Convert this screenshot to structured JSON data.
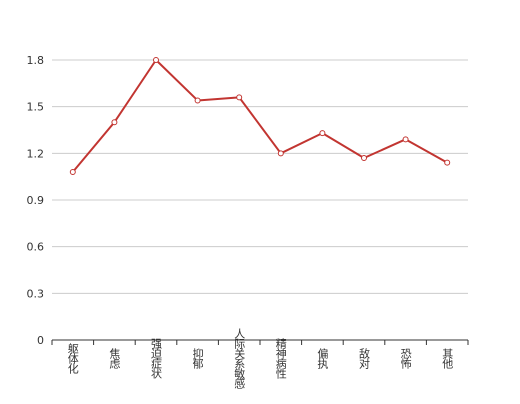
{
  "chart_data": {
    "type": "line",
    "categories": [
      "躯体化",
      "焦虑",
      "强迫症状",
      "抑郁",
      "人际关系敏感",
      "精神病性",
      "偏执",
      "敌对",
      "恐怖",
      "其他"
    ],
    "values": [
      1.08,
      1.4,
      1.8,
      1.54,
      1.56,
      1.2,
      1.33,
      1.17,
      1.29,
      1.14
    ],
    "y_ticks": [
      "0",
      "0.3",
      "0.6",
      "0.9",
      "1.2",
      "1.5",
      "1.8"
    ],
    "ylim": [
      0,
      1.8
    ],
    "grid": true,
    "line_color": "#c23531",
    "grid_color": "#cccccc",
    "axis_color": "#333333",
    "label_color": "#333333"
  }
}
